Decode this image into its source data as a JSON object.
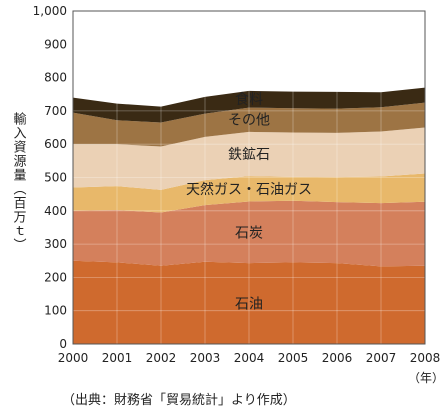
{
  "chart_data": {
    "type": "area",
    "stacked": true,
    "x": [
      "2000",
      "2001",
      "2002",
      "2003",
      "2004",
      "2005",
      "2006",
      "2007",
      "2008"
    ],
    "ylim": [
      0,
      1000
    ],
    "yticks": [
      "0",
      "100",
      "200",
      "300",
      "400",
      "500",
      "600",
      "700",
      "800",
      "900",
      "1,000"
    ],
    "ylabel": "輸入資源量（百万ｔ）",
    "x_unit": "（年）",
    "source": "（出典：財務省「貿易統計」より作成）",
    "grid": true,
    "series": [
      {
        "name": "石油",
        "values": [
          250,
          245,
          235,
          247,
          243,
          245,
          243,
          233,
          235
        ],
        "color": "#cf6a2e",
        "label_color": "#ffffff"
      },
      {
        "name": "石炭",
        "values": [
          150,
          157,
          160,
          170,
          185,
          185,
          183,
          190,
          192
        ],
        "color": "#d4805c",
        "label_color": "#ffffff"
      },
      {
        "name": "天然ガス・石油ガス",
        "values": [
          70,
          72,
          68,
          75,
          76,
          72,
          75,
          80,
          85
        ],
        "color": "#e8b86a",
        "label_color": "#222222"
      },
      {
        "name": "鉄鉱石",
        "values": [
          130,
          126,
          130,
          130,
          133,
          133,
          133,
          135,
          138
        ],
        "color": "#ebd1b5",
        "label_color": "#222222"
      },
      {
        "name": "その他",
        "values": [
          95,
          72,
          72,
          70,
          73,
          73,
          73,
          73,
          75
        ],
        "color": "#9d7444",
        "label_color": "#ffffff"
      },
      {
        "name": "食料",
        "values": [
          45,
          50,
          48,
          50,
          50,
          50,
          50,
          45,
          45
        ],
        "color": "#3a2a14",
        "label_color": "#ffffff"
      }
    ]
  }
}
